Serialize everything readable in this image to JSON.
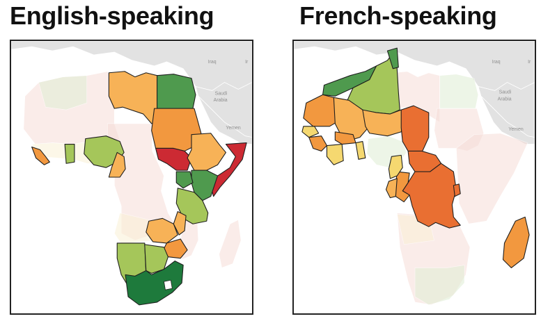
{
  "panels": {
    "left": {
      "title": "English-speaking"
    },
    "right": {
      "title": "French-speaking"
    }
  },
  "map_labels": {
    "iraq": "Iraq",
    "ir": "Ir",
    "saudi": "Saudi",
    "arabia": "Arabia",
    "yemen": "Yemen"
  },
  "colors": {
    "dark_green": "#1e7a3c",
    "green": "#4f9a4e",
    "yellow_green": "#a5c65a",
    "light_yellow": "#f5d870",
    "light_orange": "#f7b257",
    "orange": "#f2983f",
    "dark_orange": "#e96f32",
    "red": "#cc2a33",
    "faded_pink": "#f6ddd8",
    "faded_green": "#e0eed5",
    "faded_yellow": "#fbf1d6",
    "background_land": "#e2e2e2"
  }
}
